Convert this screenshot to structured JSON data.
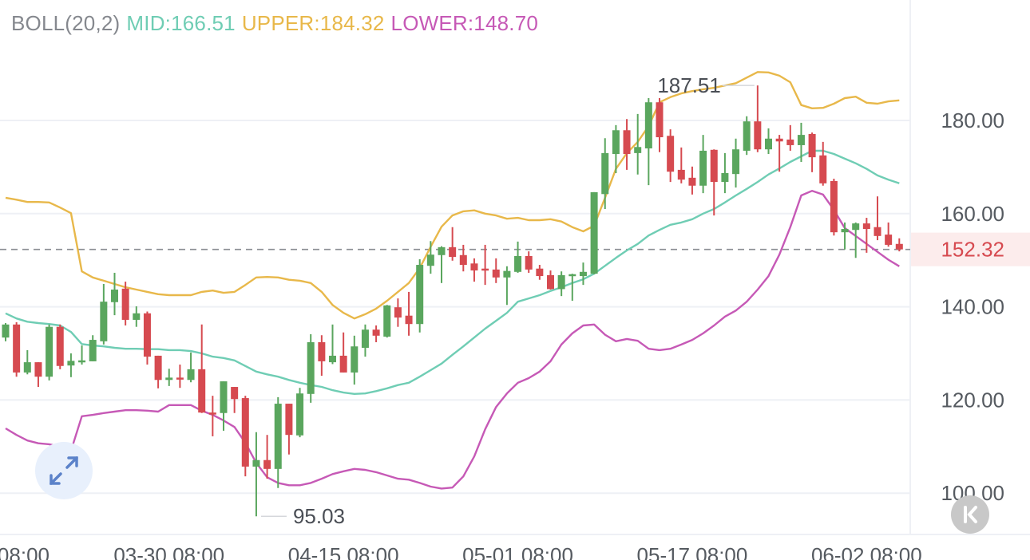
{
  "legend": {
    "name": "BOLL(20,2)",
    "mid": "MID:166.51",
    "upper": "UPPER:184.32",
    "lower": "LOWER:148.70"
  },
  "colors": {
    "up": "#5aa65e",
    "down": "#d64a50",
    "mid": "#6fcdb4",
    "upper": "#e8b84a",
    "lower": "#c659b6",
    "legend_name": "#85888e",
    "current_bg": "#fcecec"
  },
  "chart_data": {
    "type": "candlestick",
    "title": "",
    "ylim": [
      92,
      205
    ],
    "y_ticks": [
      180,
      160,
      140,
      120,
      100
    ],
    "y_tick_labels": [
      "180.00",
      "160.00",
      "140.00",
      "120.00",
      "100.00"
    ],
    "x_tick_labels": [
      {
        "index": -1,
        "label": "08:00"
      },
      {
        "index": 15,
        "label": "03-30 08:00"
      },
      {
        "index": 31,
        "label": "04-15 08:00"
      },
      {
        "index": 47,
        "label": "05-01 08:00"
      },
      {
        "index": 63,
        "label": "05-17 08:00"
      },
      {
        "index": 79,
        "label": "06-02 08:00"
      }
    ],
    "current_price": 152.32,
    "current_price_label": "152.32",
    "max_marker": {
      "index": 69,
      "value": 187.51,
      "label": "187.51"
    },
    "min_marker": {
      "index": 23,
      "value": 95.03,
      "label": "95.03"
    },
    "ohlc": [
      [
        133.4,
        136.2,
        136.5,
        132.6
      ],
      [
        136.2,
        125.9,
        136.7,
        125.0
      ],
      [
        125.9,
        128.1,
        130.7,
        125.5
      ],
      [
        128.1,
        125.0,
        128.1,
        122.8
      ],
      [
        125.0,
        135.7,
        136.2,
        124.2
      ],
      [
        135.7,
        127.3,
        136.2,
        126.6
      ],
      [
        127.4,
        128.4,
        130.0,
        124.9
      ],
      [
        128.3,
        128.5,
        131.7,
        127.6
      ],
      [
        128.3,
        132.9,
        133.9,
        128.3
      ],
      [
        132.6,
        141.1,
        144.9,
        131.9
      ],
      [
        141.0,
        143.7,
        147.3,
        138.2
      ],
      [
        143.9,
        137.2,
        145.4,
        136.0
      ],
      [
        137.2,
        138.6,
        140.1,
        135.7
      ],
      [
        138.6,
        129.3,
        139.0,
        127.6
      ],
      [
        129.5,
        124.3,
        129.5,
        122.5
      ],
      [
        124.3,
        124.8,
        126.7,
        123.0
      ],
      [
        124.8,
        124.4,
        127.6,
        122.6
      ],
      [
        124.3,
        126.6,
        130.2,
        123.8
      ],
      [
        126.6,
        117.3,
        136.2,
        117.2
      ],
      [
        117.3,
        117.0,
        120.9,
        112.2
      ],
      [
        117.2,
        124.0,
        124.0,
        113.4
      ],
      [
        122.8,
        120.2,
        122.8,
        117.2
      ],
      [
        120.4,
        105.7,
        120.9,
        103.6
      ],
      [
        105.7,
        107.1,
        113.1,
        95.03
      ],
      [
        107.1,
        105.2,
        112.5,
        103.1
      ],
      [
        105.2,
        119.2,
        120.6,
        101.1
      ],
      [
        119.2,
        112.5,
        119.2,
        108.3
      ],
      [
        112.4,
        121.4,
        122.6,
        112.0
      ],
      [
        121.3,
        132.4,
        134.1,
        119.4
      ],
      [
        132.4,
        128.3,
        133.9,
        125.2
      ],
      [
        128.1,
        129.5,
        136.2,
        127.7
      ],
      [
        129.5,
        125.9,
        134.5,
        125.9
      ],
      [
        125.9,
        131.5,
        133.8,
        123.3
      ],
      [
        131.2,
        135.1,
        136.2,
        129.3
      ],
      [
        135.1,
        133.8,
        136.0,
        132.4
      ],
      [
        133.6,
        140.3,
        140.4,
        133.4
      ],
      [
        139.9,
        137.7,
        141.8,
        135.7
      ],
      [
        138.1,
        136.3,
        143.2,
        133.8
      ],
      [
        136.3,
        149.0,
        150.2,
        134.5
      ],
      [
        148.8,
        151.2,
        154.1,
        147.1
      ],
      [
        151.1,
        152.8,
        153.0,
        145.1
      ],
      [
        152.8,
        150.7,
        157.1,
        149.9
      ],
      [
        151.1,
        149.0,
        153.3,
        147.6
      ],
      [
        149.3,
        147.8,
        150.4,
        145.4
      ],
      [
        148.2,
        147.8,
        153.3,
        144.7
      ],
      [
        148.0,
        146.3,
        150.4,
        145.1
      ],
      [
        146.3,
        147.7,
        148.7,
        140.4
      ],
      [
        147.5,
        150.9,
        154.0,
        147.3
      ],
      [
        150.9,
        148.0,
        151.9,
        147.3
      ],
      [
        148.2,
        146.6,
        149.0,
        145.8
      ],
      [
        146.8,
        143.8,
        147.8,
        143.7
      ],
      [
        143.8,
        146.8,
        147.6,
        142.3
      ],
      [
        146.6,
        147.0,
        147.1,
        141.3
      ],
      [
        146.6,
        147.5,
        149.5,
        144.7
      ],
      [
        147.1,
        164.6,
        164.6,
        147.0
      ],
      [
        164.2,
        173.0,
        176.2,
        161.0
      ],
      [
        172.8,
        177.9,
        179.0,
        168.7
      ],
      [
        177.9,
        172.8,
        180.3,
        169.4
      ],
      [
        173.0,
        174.3,
        181.4,
        168.4
      ],
      [
        174.0,
        183.9,
        184.8,
        166.1
      ],
      [
        183.9,
        176.4,
        184.8,
        173.2
      ],
      [
        176.7,
        169.0,
        178.1,
        166.8
      ],
      [
        169.4,
        167.3,
        174.2,
        166.5
      ],
      [
        167.7,
        166.0,
        170.1,
        164.1
      ],
      [
        166.0,
        173.5,
        176.9,
        164.4
      ],
      [
        173.7,
        166.8,
        173.8,
        159.6
      ],
      [
        166.8,
        168.7,
        173.0,
        164.4
      ],
      [
        168.5,
        173.8,
        176.1,
        165.6
      ],
      [
        173.5,
        179.8,
        180.9,
        172.6
      ],
      [
        179.8,
        173.8,
        187.51,
        173.2
      ],
      [
        173.8,
        176.1,
        178.3,
        172.8
      ],
      [
        176.1,
        175.5,
        176.9,
        169.0
      ],
      [
        175.9,
        174.7,
        179.0,
        173.5
      ],
      [
        174.7,
        176.9,
        179.5,
        171.1
      ],
      [
        177.1,
        172.1,
        177.4,
        168.9
      ],
      [
        172.5,
        166.5,
        175.4,
        166.0
      ],
      [
        167.0,
        156.0,
        167.5,
        155.3
      ],
      [
        156.0,
        156.7,
        158.1,
        152.3
      ],
      [
        156.5,
        157.9,
        158.1,
        150.5
      ],
      [
        157.9,
        156.7,
        159.1,
        151.6
      ],
      [
        157.1,
        155.2,
        163.7,
        154.3
      ],
      [
        155.5,
        153.3,
        158.1,
        152.9
      ],
      [
        153.5,
        152.32,
        154.7,
        151.9
      ]
    ],
    "series": [
      {
        "name": "UPPER",
        "values": [
          163.4,
          163.0,
          162.5,
          162.5,
          162.4,
          161.3,
          160.1,
          147.6,
          146.3,
          145.6,
          144.9,
          144.2,
          143.7,
          143.2,
          142.7,
          142.5,
          142.5,
          142.5,
          143.2,
          143.5,
          143.0,
          143.2,
          144.7,
          146.3,
          146.4,
          146.3,
          145.8,
          145.6,
          145.1,
          143.2,
          140.4,
          138.7,
          137.5,
          138.4,
          139.6,
          141.3,
          143.2,
          145.1,
          148.3,
          152.9,
          157.2,
          159.6,
          160.5,
          160.7,
          160.0,
          159.6,
          158.9,
          159.1,
          158.6,
          158.6,
          158.8,
          158.3,
          157.1,
          156.2,
          157.4,
          163.4,
          169.6,
          173.0,
          175.4,
          178.8,
          183.9,
          185.0,
          185.8,
          186.3,
          186.7,
          187.0,
          187.5,
          188.0,
          189.2,
          190.4,
          190.3,
          189.6,
          188.2,
          183.3,
          182.6,
          182.7,
          183.6,
          184.8,
          185.1,
          183.8,
          183.6,
          184.1,
          184.32
        ]
      },
      {
        "name": "MID",
        "values": [
          138.6,
          137.5,
          136.8,
          136.5,
          136.3,
          136.0,
          134.6,
          132.0,
          131.7,
          131.5,
          131.2,
          131.0,
          131.0,
          130.9,
          130.9,
          130.7,
          130.7,
          130.5,
          130.0,
          129.3,
          129.0,
          128.5,
          127.3,
          126.1,
          125.5,
          125.0,
          124.3,
          123.7,
          123.2,
          122.8,
          122.1,
          121.6,
          121.3,
          121.4,
          121.9,
          122.5,
          123.2,
          123.7,
          125.0,
          126.4,
          127.8,
          129.7,
          131.5,
          133.4,
          135.3,
          137.0,
          138.7,
          141.1,
          141.8,
          142.5,
          143.4,
          144.2,
          145.1,
          145.9,
          147.1,
          148.8,
          150.5,
          152.1,
          153.5,
          155.3,
          156.5,
          157.6,
          158.1,
          158.8,
          160.0,
          161.0,
          162.4,
          163.9,
          165.3,
          166.8,
          168.4,
          169.7,
          171.1,
          172.3,
          173.5,
          173.5,
          172.8,
          171.8,
          170.8,
          169.6,
          168.2,
          167.3,
          166.51
        ]
      },
      {
        "name": "LOWER",
        "values": [
          113.9,
          112.5,
          111.3,
          110.7,
          110.5,
          110.0,
          109.1,
          116.5,
          116.8,
          117.2,
          117.5,
          117.8,
          117.8,
          117.7,
          117.5,
          118.9,
          118.9,
          118.9,
          117.7,
          116.8,
          115.6,
          114.2,
          110.8,
          106.5,
          103.4,
          102.2,
          101.7,
          101.7,
          102.2,
          103.1,
          104.1,
          104.7,
          105.2,
          105.0,
          104.5,
          103.8,
          103.1,
          102.9,
          102.2,
          101.4,
          101.0,
          101.2,
          103.6,
          107.9,
          113.7,
          118.5,
          121.4,
          123.7,
          124.7,
          126.1,
          128.3,
          131.9,
          134.3,
          136.0,
          136.2,
          134.0,
          132.6,
          133.1,
          132.7,
          131.0,
          130.7,
          131.0,
          131.9,
          132.9,
          134.3,
          136.0,
          137.9,
          139.2,
          141.1,
          143.7,
          146.6,
          151.2,
          157.1,
          163.9,
          164.9,
          164.1,
          160.8,
          156.9,
          155.2,
          153.5,
          151.8,
          150.1,
          148.7
        ]
      }
    ]
  }
}
